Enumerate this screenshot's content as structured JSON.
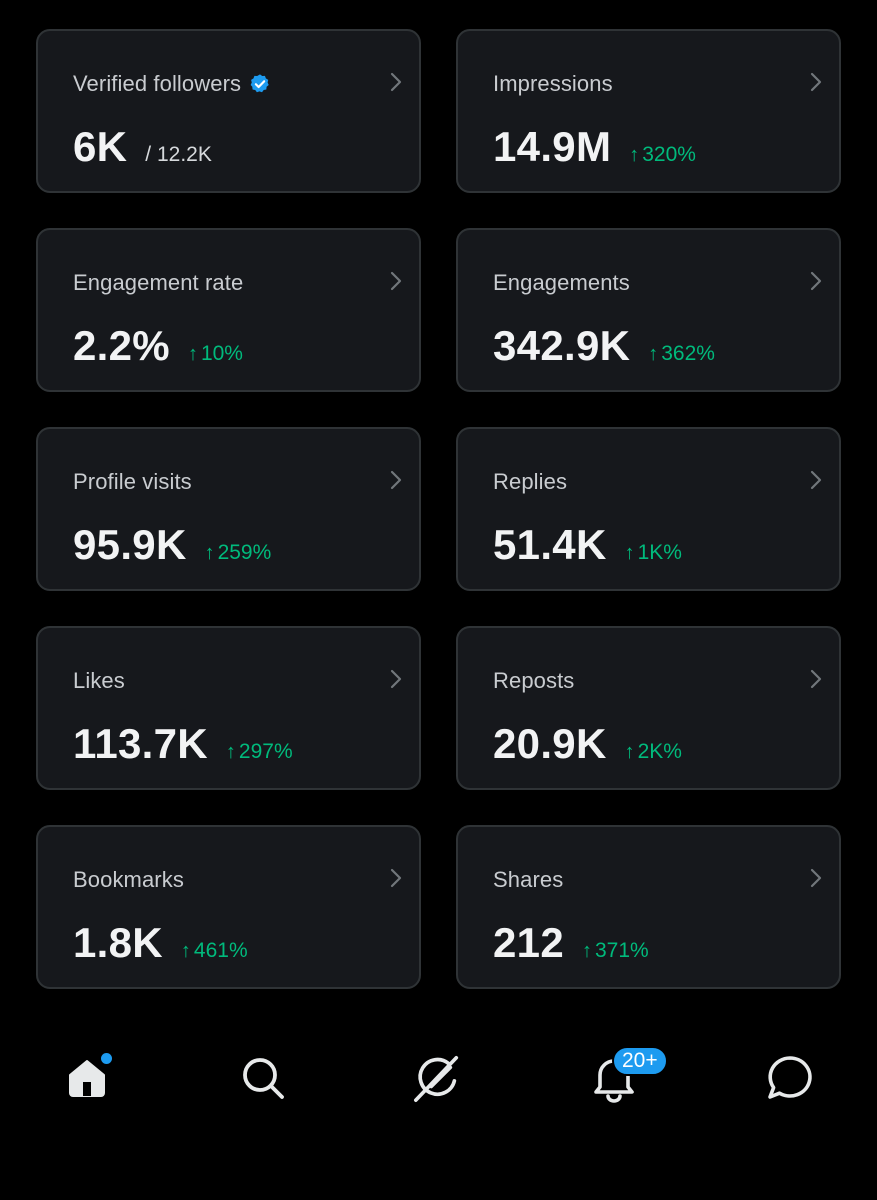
{
  "metrics": [
    {
      "label": "Verified followers",
      "value": "6K",
      "sub": "/ 12.2K",
      "verified": true
    },
    {
      "label": "Impressions",
      "value": "14.9M",
      "change": "320%"
    },
    {
      "label": "Engagement rate",
      "value": "2.2%",
      "change": "10%"
    },
    {
      "label": "Engagements",
      "value": "342.9K",
      "change": "362%"
    },
    {
      "label": "Profile visits",
      "value": "95.9K",
      "change": "259%"
    },
    {
      "label": "Replies",
      "value": "51.4K",
      "change": "1K%"
    },
    {
      "label": "Likes",
      "value": "113.7K",
      "change": "297%"
    },
    {
      "label": "Reposts",
      "value": "20.9K",
      "change": "2K%"
    },
    {
      "label": "Bookmarks",
      "value": "1.8K",
      "change": "461%"
    },
    {
      "label": "Shares",
      "value": "212",
      "change": "371%"
    }
  ],
  "arrow": "↑",
  "nav": {
    "items": [
      "home-icon",
      "search-icon",
      "grok-icon",
      "notifications-icon",
      "messages-icon"
    ],
    "notifications_badge": "20+"
  },
  "colors": {
    "accent": "#1d9bf0",
    "positive": "#00ba7c",
    "card_bg": "#16181c",
    "card_border": "#2f3336"
  }
}
